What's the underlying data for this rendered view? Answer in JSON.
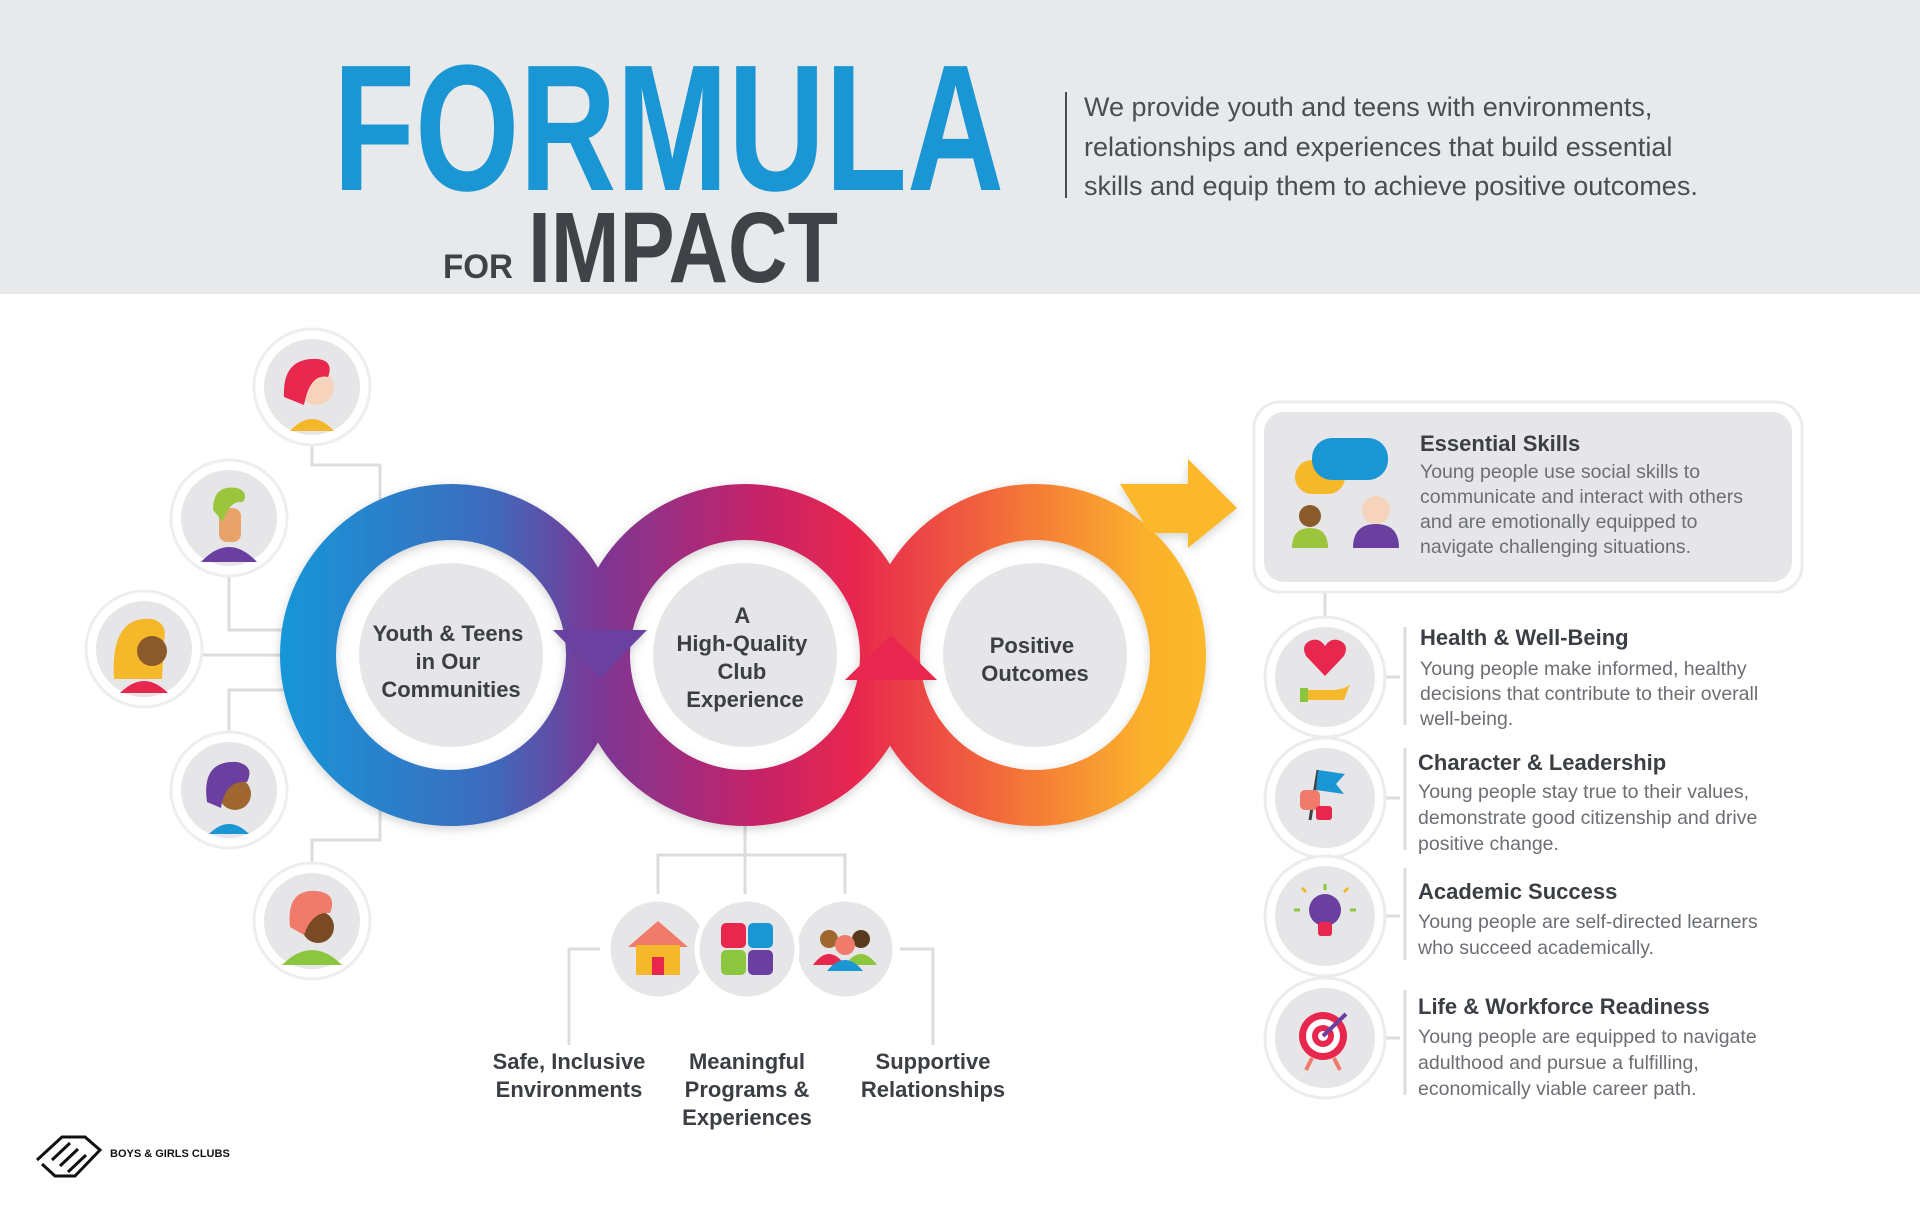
{
  "header": {
    "title_main": "FORMULA",
    "title_for": "FOR",
    "title_impact": "IMPACT",
    "tagline": [
      "We provide youth and teens with environments,",
      "relationships and experiences that build essential",
      "skills and equip them to achieve positive outcomes."
    ]
  },
  "cycle": {
    "youth": [
      "Youth & Teens",
      "in Our",
      "Communities"
    ],
    "club": [
      "A",
      "High-Quality",
      "Club",
      "Experience"
    ],
    "outcomes": [
      "Positive",
      "Outcomes"
    ]
  },
  "pillars": [
    {
      "icon": "house-icon",
      "label": [
        "Safe, Inclusive",
        "Environments"
      ]
    },
    {
      "icon": "puzzle-icon",
      "label": [
        "Meaningful",
        "Programs &",
        "Experiences"
      ]
    },
    {
      "icon": "group-icon",
      "label": [
        "Supportive",
        "Relationships"
      ]
    }
  ],
  "outcomes": [
    {
      "icon": "speech-bubbles-people-icon",
      "title": "Essential Skills",
      "desc": [
        "Young people use social skills to",
        "communicate and interact with others",
        "and are emotionally equipped to",
        "navigate challenging situations."
      ]
    },
    {
      "icon": "heart-hand-icon",
      "title": "Health & Well-Being",
      "desc": [
        "Young people make informed, healthy",
        "decisions that contribute to their overall",
        "well-being."
      ]
    },
    {
      "icon": "flag-hand-icon",
      "title": "Character & Leadership",
      "desc": [
        "Young people stay true to their values,",
        "demonstrate good citizenship and drive",
        "positive change."
      ]
    },
    {
      "icon": "lightbulb-icon",
      "title": "Academic Success",
      "desc": [
        "Young people are self-directed learners",
        "who succeed academically."
      ]
    },
    {
      "icon": "target-icon",
      "title": "Life & Workforce Readiness",
      "desc": [
        "Young people are equipped to navigate",
        "adulthood and pursue a fulfilling,",
        "economically viable career path."
      ]
    }
  ],
  "logo": {
    "text": "BOYS & GIRLS CLUBS"
  },
  "colors": {
    "brand_blue": "#1a96d4",
    "dark_text": "#3f4347",
    "header_bg": "#e8e9eb",
    "ring_gradient": [
      "#1796d8",
      "#5a4fa3",
      "#8e2a8a",
      "#e31f5a",
      "#f26b3a",
      "#fbb12c"
    ]
  }
}
